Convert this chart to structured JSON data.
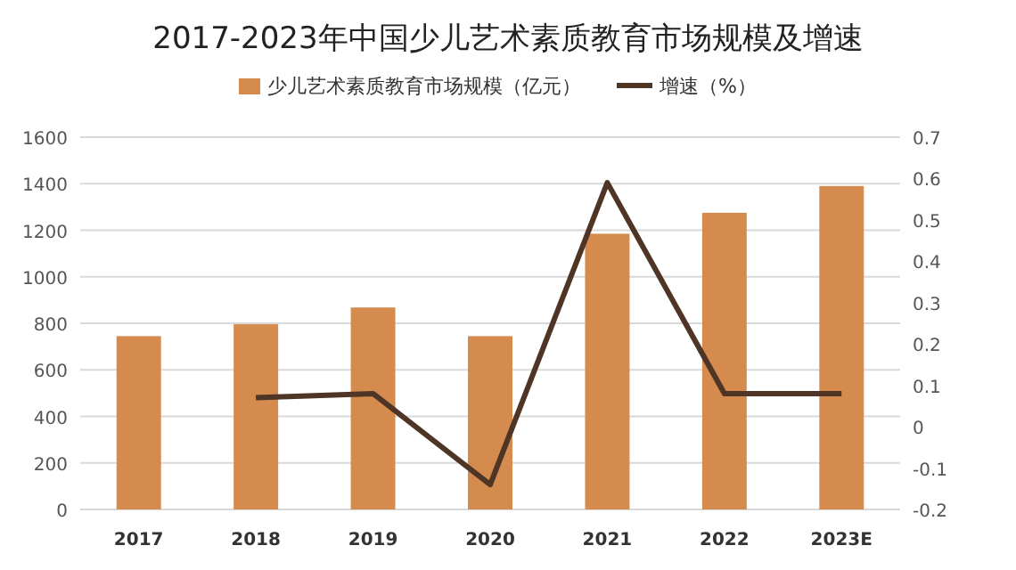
{
  "chart_data": {
    "type": "bar",
    "title": "2017-2023年中国少儿艺术素质教育市场规模及增速",
    "categories": [
      "2017",
      "2018",
      "2019",
      "2020",
      "2021",
      "2022",
      "2023E"
    ],
    "series": [
      {
        "name": "少儿艺术素质教育市场规模（亿元）",
        "color": "#d58b4d",
        "values": [
          745,
          796,
          868,
          745,
          1185,
          1275,
          1390
        ]
      },
      {
        "name": "增速（%）",
        "type": "line",
        "axis": "y2",
        "color": "#4e3526",
        "values": [
          null,
          0.07,
          0.08,
          -0.14,
          0.59,
          0.08,
          0.08
        ]
      }
    ],
    "ylim": [
      0,
      1600
    ],
    "yticks": [
      0,
      200,
      400,
      600,
      800,
      1000,
      1200,
      1400,
      1600
    ],
    "y2lim": [
      -0.2,
      0.7
    ],
    "y2ticks": [
      -0.2,
      -0.1,
      0,
      0.1,
      0.2,
      0.3,
      0.4,
      0.5,
      0.6,
      0.7
    ],
    "grid": "y",
    "legend": "top"
  }
}
